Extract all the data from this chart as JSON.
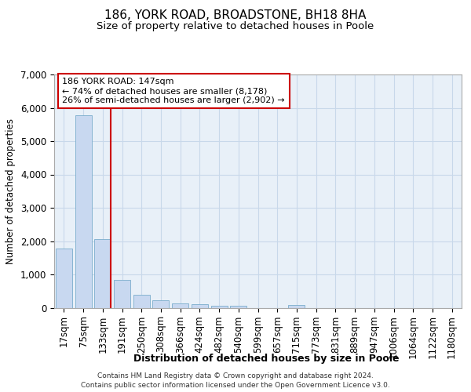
{
  "title_line1": "186, YORK ROAD, BROADSTONE, BH18 8HA",
  "title_line2": "Size of property relative to detached houses in Poole",
  "xlabel": "Distribution of detached houses by size in Poole",
  "ylabel": "Number of detached properties",
  "bar_labels": [
    "17sqm",
    "75sqm",
    "133sqm",
    "191sqm",
    "250sqm",
    "308sqm",
    "366sqm",
    "424sqm",
    "482sqm",
    "540sqm",
    "599sqm",
    "657sqm",
    "715sqm",
    "773sqm",
    "831sqm",
    "889sqm",
    "947sqm",
    "1006sqm",
    "1064sqm",
    "1122sqm",
    "1180sqm"
  ],
  "bar_values": [
    1780,
    5780,
    2070,
    840,
    380,
    220,
    120,
    110,
    70,
    55,
    0,
    0,
    75,
    0,
    0,
    0,
    0,
    0,
    0,
    0,
    0
  ],
  "bar_color": "#c8d8f0",
  "bar_edge_color": "#7aadcc",
  "vline_color": "#cc0000",
  "vline_x_index": 2,
  "annotation_line1": "186 YORK ROAD: 147sqm",
  "annotation_line2": "← 74% of detached houses are smaller (8,178)",
  "annotation_line3": "26% of semi-detached houses are larger (2,902) →",
  "annotation_box_facecolor": "#ffffff",
  "annotation_box_edgecolor": "#cc0000",
  "ylim_max": 7000,
  "yticks": [
    0,
    1000,
    2000,
    3000,
    4000,
    5000,
    6000,
    7000
  ],
  "grid_color": "#c8d8ea",
  "bg_color": "#ffffff",
  "footer_line1": "Contains HM Land Registry data © Crown copyright and database right 2024.",
  "footer_line2": "Contains public sector information licensed under the Open Government Licence v3.0."
}
